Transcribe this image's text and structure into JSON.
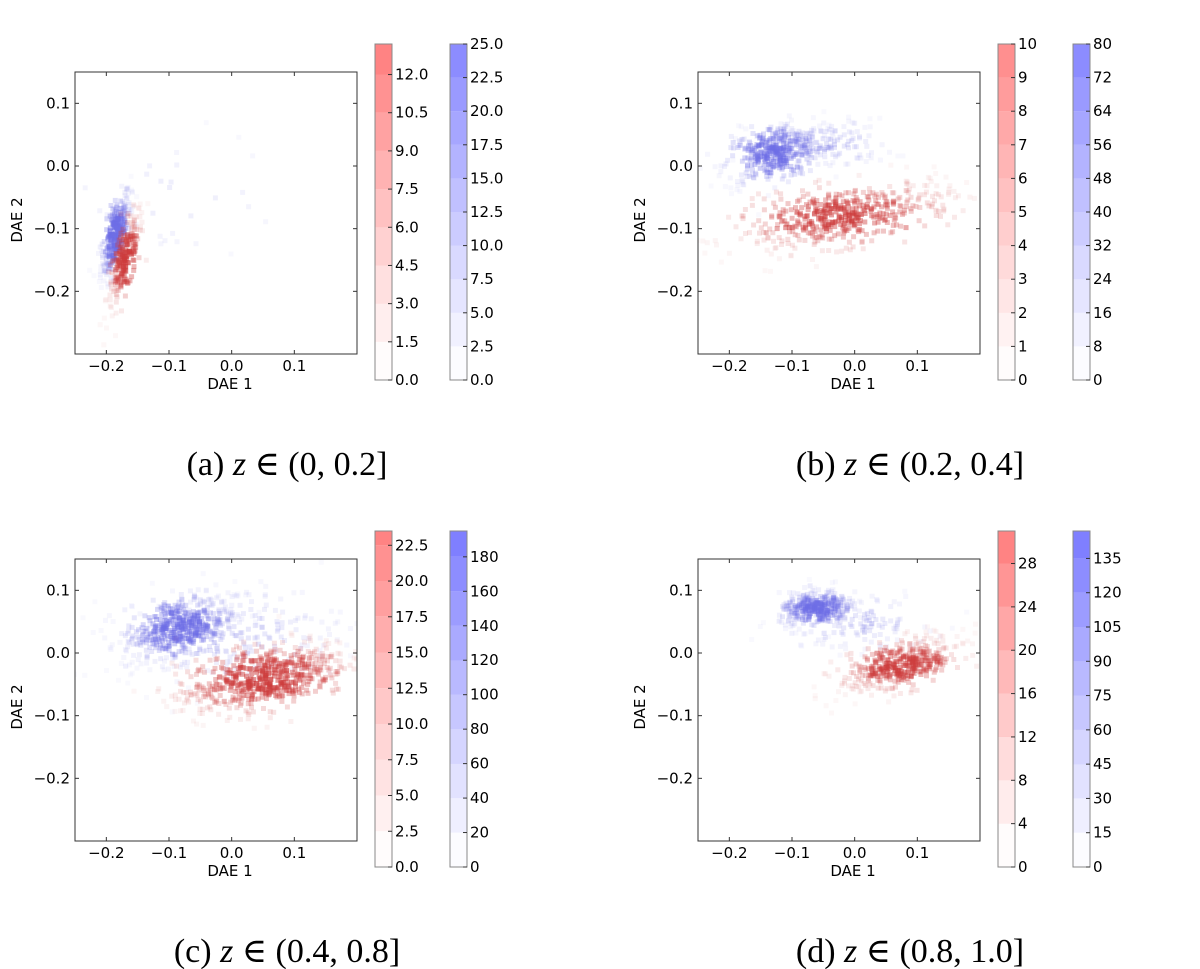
{
  "chart_data": [
    {
      "type": "heatmap",
      "caption": "(a) z ∈ (0, 0.2]",
      "xlabel": "DAE 1",
      "ylabel": "DAE 2",
      "xlim": [
        -0.25,
        0.2
      ],
      "ylim": [
        -0.3,
        0.15
      ],
      "xticks": [
        -0.2,
        -0.1,
        0.0,
        0.1
      ],
      "xtick_labels": [
        "−0.2",
        "−0.1",
        "0.0",
        "0.1"
      ],
      "yticks": [
        0.1,
        0.0,
        -0.1,
        -0.2
      ],
      "ytick_labels": [
        "0.1",
        "0.0",
        "−0.1",
        "−0.2"
      ],
      "colorbars": [
        {
          "color": "#ff7070",
          "max": 13.2,
          "ticks": [
            0.0,
            1.5,
            3.0,
            4.5,
            6.0,
            7.5,
            9.0,
            10.5,
            12.0
          ],
          "tick_labels": [
            "0.0",
            "1.5",
            "3.0",
            "4.5",
            "6.0",
            "7.5",
            "9.0",
            "10.5",
            "12.0"
          ]
        },
        {
          "color": "#6c6cff",
          "max": 25.0,
          "ticks": [
            0.0,
            2.5,
            5.0,
            7.5,
            10.0,
            12.5,
            15.0,
            17.5,
            20.0,
            22.5,
            25.0
          ],
          "tick_labels": [
            "0.0",
            "2.5",
            "5.0",
            "7.5",
            "10.0",
            "12.5",
            "15.0",
            "17.5",
            "20.0",
            "22.5",
            "25.0"
          ]
        }
      ],
      "blobs": [
        {
          "series": "blue",
          "cx": -0.185,
          "cy": -0.11,
          "sx": 0.012,
          "sy": 0.035,
          "rho": 0.7,
          "n": 260,
          "max_alpha": 0.55
        },
        {
          "series": "red",
          "cx": -0.17,
          "cy": -0.15,
          "sx": 0.015,
          "sy": 0.04,
          "rho": 0.75,
          "n": 200,
          "max_alpha": 0.5
        },
        {
          "series": "blue",
          "cx": -0.1,
          "cy": -0.05,
          "sx": 0.1,
          "sy": 0.05,
          "rho": 0.0,
          "n": 35,
          "max_alpha": 0.08
        }
      ]
    },
    {
      "type": "heatmap",
      "caption": "(b) z ∈ (0.2, 0.4]",
      "xlabel": "DAE 1",
      "ylabel": "DAE 2",
      "xlim": [
        -0.25,
        0.2
      ],
      "ylim": [
        -0.3,
        0.15
      ],
      "xticks": [
        -0.2,
        -0.1,
        0.0,
        0.1
      ],
      "xtick_labels": [
        "−0.2",
        "−0.1",
        "0.0",
        "0.1"
      ],
      "yticks": [
        0.1,
        0.0,
        -0.1,
        -0.2
      ],
      "ytick_labels": [
        "0.1",
        "0.0",
        "−0.1",
        "−0.2"
      ],
      "colorbars": [
        {
          "color": "#ff7070",
          "max": 10,
          "ticks": [
            0,
            1,
            2,
            3,
            4,
            5,
            6,
            7,
            8,
            9,
            10
          ],
          "tick_labels": [
            "0",
            "1",
            "2",
            "3",
            "4",
            "5",
            "6",
            "7",
            "8",
            "9",
            "10"
          ]
        },
        {
          "color": "#6c6cff",
          "max": 80,
          "ticks": [
            0,
            8,
            16,
            24,
            32,
            40,
            48,
            56,
            64,
            72,
            80
          ],
          "tick_labels": [
            "0",
            "8",
            "16",
            "24",
            "32",
            "40",
            "48",
            "56",
            "64",
            "72",
            "80"
          ]
        }
      ],
      "blobs": [
        {
          "series": "blue",
          "cx": -0.13,
          "cy": 0.02,
          "sx": 0.04,
          "sy": 0.025,
          "rho": 0.4,
          "n": 320,
          "max_alpha": 0.45
        },
        {
          "series": "blue",
          "cx": -0.06,
          "cy": 0.035,
          "sx": 0.06,
          "sy": 0.02,
          "rho": 0.0,
          "n": 150,
          "max_alpha": 0.15
        },
        {
          "series": "red",
          "cx": -0.02,
          "cy": -0.08,
          "sx": 0.09,
          "sy": 0.028,
          "rho": 0.55,
          "n": 480,
          "max_alpha": 0.45
        }
      ]
    },
    {
      "type": "heatmap",
      "caption": "(c) z ∈ (0.4, 0.8]",
      "xlabel": "DAE 1",
      "ylabel": "DAE 2",
      "xlim": [
        -0.25,
        0.2
      ],
      "ylim": [
        -0.3,
        0.15
      ],
      "xticks": [
        -0.2,
        -0.1,
        0.0,
        0.1
      ],
      "xtick_labels": [
        "−0.2",
        "−0.1",
        "0.0",
        "0.1"
      ],
      "yticks": [
        0.1,
        0.0,
        -0.1,
        -0.2
      ],
      "ytick_labels": [
        "0.1",
        "0.0",
        "−0.1",
        "−0.2"
      ],
      "colorbars": [
        {
          "color": "#ff7070",
          "max": 23.5,
          "ticks": [
            0.0,
            2.5,
            5.0,
            7.5,
            10.0,
            12.5,
            15.0,
            17.5,
            20.0,
            22.5
          ],
          "tick_labels": [
            "0.0",
            "2.5",
            "5.0",
            "7.5",
            "10.0",
            "12.5",
            "15.0",
            "17.5",
            "20.0",
            "22.5"
          ]
        },
        {
          "color": "#6c6cff",
          "max": 195,
          "ticks": [
            0,
            20,
            40,
            60,
            80,
            100,
            120,
            140,
            160,
            180
          ],
          "tick_labels": [
            "0",
            "20",
            "40",
            "60",
            "80",
            "100",
            "120",
            "140",
            "160",
            "180"
          ]
        }
      ],
      "blobs": [
        {
          "series": "blue",
          "cx": -0.085,
          "cy": 0.04,
          "sx": 0.045,
          "sy": 0.028,
          "rho": 0.4,
          "n": 420,
          "max_alpha": 0.45
        },
        {
          "series": "blue",
          "cx": 0.0,
          "cy": 0.03,
          "sx": 0.09,
          "sy": 0.04,
          "rho": 0.1,
          "n": 220,
          "max_alpha": 0.13
        },
        {
          "series": "red",
          "cx": 0.05,
          "cy": -0.04,
          "sx": 0.07,
          "sy": 0.03,
          "rho": 0.5,
          "n": 560,
          "max_alpha": 0.5
        }
      ]
    },
    {
      "type": "heatmap",
      "caption": "(d) z ∈ (0.8, 1.0]",
      "xlabel": "DAE 1",
      "ylabel": "DAE 2",
      "xlim": [
        -0.25,
        0.2
      ],
      "ylim": [
        -0.3,
        0.15
      ],
      "xticks": [
        -0.2,
        -0.1,
        0.0,
        0.1
      ],
      "xtick_labels": [
        "−0.2",
        "−0.1",
        "0.0",
        "0.1"
      ],
      "yticks": [
        0.1,
        0.0,
        -0.1,
        -0.2
      ],
      "ytick_labels": [
        "0.1",
        "0.0",
        "−0.1",
        "−0.2"
      ],
      "colorbars": [
        {
          "color": "#ff7070",
          "max": 31,
          "ticks": [
            0,
            4,
            8,
            12,
            16,
            20,
            24,
            28
          ],
          "tick_labels": [
            "0",
            "4",
            "8",
            "12",
            "16",
            "20",
            "24",
            "28"
          ]
        },
        {
          "color": "#6c6cff",
          "max": 147,
          "ticks": [
            0,
            15,
            30,
            45,
            60,
            75,
            90,
            105,
            120,
            135
          ],
          "tick_labels": [
            "0",
            "15",
            "30",
            "45",
            "60",
            "75",
            "90",
            "105",
            "120",
            "135"
          ]
        }
      ],
      "blobs": [
        {
          "series": "blue",
          "cx": -0.06,
          "cy": 0.07,
          "sx": 0.03,
          "sy": 0.015,
          "rho": 0.2,
          "n": 280,
          "max_alpha": 0.45
        },
        {
          "series": "blue",
          "cx": 0.0,
          "cy": 0.05,
          "sx": 0.06,
          "sy": 0.025,
          "rho": 0.0,
          "n": 120,
          "max_alpha": 0.13
        },
        {
          "series": "red",
          "cx": 0.075,
          "cy": -0.02,
          "sx": 0.05,
          "sy": 0.022,
          "rho": 0.5,
          "n": 380,
          "max_alpha": 0.45
        }
      ]
    }
  ]
}
